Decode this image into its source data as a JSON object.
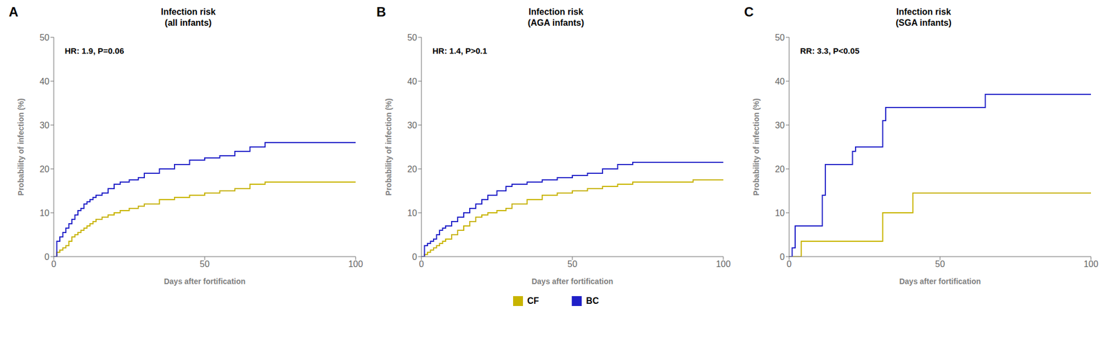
{
  "chart_data": [
    {
      "type": "step",
      "panel_label": "A",
      "title": "Infection risk\n(all infants)",
      "annotations": [
        "HR: 1.9, P=0.06"
      ],
      "x_label": "Days after fortification",
      "y_label": "Probability of infection (%)",
      "xlim": [
        0,
        100
      ],
      "xticks": [
        0,
        50,
        100
      ],
      "ylim": [
        0,
        50
      ],
      "yticks": [
        0,
        10,
        20,
        30,
        40,
        50
      ],
      "grid": false,
      "legend": "bottom",
      "series": [
        {
          "name": "CF",
          "color": "#c8b400",
          "x": [
            0,
            1,
            2,
            3,
            4,
            5,
            6,
            7,
            8,
            9,
            10,
            11,
            12,
            13,
            14,
            16,
            18,
            20,
            22,
            25,
            28,
            30,
            35,
            40,
            45,
            50,
            55,
            60,
            65,
            70,
            100
          ],
          "values": [
            0,
            1.0,
            1.5,
            2.0,
            2.5,
            3.5,
            4.5,
            5.0,
            5.5,
            6.0,
            6.5,
            7.0,
            7.5,
            8.0,
            8.5,
            9.0,
            9.5,
            10.0,
            10.5,
            11.0,
            11.5,
            12.0,
            13.0,
            13.5,
            14.0,
            14.5,
            15.0,
            15.5,
            16.5,
            17.0,
            17.0
          ]
        },
        {
          "name": "BC",
          "color": "#2020c8",
          "x": [
            0,
            1,
            2,
            3,
            4,
            5,
            6,
            7,
            8,
            9,
            10,
            11,
            12,
            13,
            14,
            16,
            18,
            20,
            22,
            25,
            28,
            30,
            35,
            40,
            45,
            50,
            55,
            60,
            65,
            70,
            100
          ],
          "values": [
            0,
            3.5,
            4.5,
            5.5,
            6.5,
            7.5,
            8.5,
            9.5,
            10.5,
            11.0,
            12.0,
            12.5,
            13.0,
            13.5,
            14.0,
            14.5,
            15.5,
            16.5,
            17.0,
            17.5,
            18.0,
            19.0,
            20.0,
            21.0,
            22.0,
            22.5,
            23.0,
            24.0,
            25.0,
            26.0,
            26.0
          ]
        }
      ]
    },
    {
      "type": "step",
      "panel_label": "B",
      "title": "Infection risk\n(AGA infants)",
      "annotations": [
        "HR: 1.4, P>0.1"
      ],
      "x_label": "Days after fortification",
      "y_label": "Probability of infection (%)",
      "xlim": [
        0,
        100
      ],
      "xticks": [
        0,
        50,
        100
      ],
      "ylim": [
        0,
        50
      ],
      "yticks": [
        0,
        10,
        20,
        30,
        40,
        50
      ],
      "grid": false,
      "legend": "bottom",
      "series": [
        {
          "name": "CF",
          "color": "#c8b400",
          "x": [
            0,
            1,
            2,
            3,
            4,
            5,
            6,
            7,
            8,
            10,
            12,
            14,
            16,
            18,
            20,
            22,
            25,
            28,
            30,
            35,
            40,
            45,
            50,
            55,
            60,
            65,
            70,
            90,
            100
          ],
          "values": [
            0,
            0.5,
            1.0,
            1.5,
            2.0,
            2.5,
            3.0,
            3.5,
            4.0,
            5.0,
            6.0,
            7.0,
            8.0,
            9.0,
            9.5,
            10.0,
            10.5,
            11.0,
            12.0,
            13.0,
            14.0,
            14.5,
            15.0,
            15.5,
            16.0,
            16.5,
            17.0,
            17.5,
            17.5
          ]
        },
        {
          "name": "BC",
          "color": "#2020c8",
          "x": [
            0,
            1,
            2,
            3,
            4,
            5,
            6,
            7,
            8,
            10,
            12,
            14,
            16,
            18,
            20,
            22,
            25,
            28,
            30,
            35,
            40,
            45,
            50,
            55,
            60,
            65,
            70,
            90,
            100
          ],
          "values": [
            0,
            2.5,
            3.0,
            3.5,
            4.0,
            5.0,
            6.0,
            6.5,
            7.0,
            8.0,
            9.0,
            10.0,
            11.0,
            12.0,
            13.0,
            14.0,
            15.0,
            16.0,
            16.5,
            17.0,
            17.5,
            18.0,
            18.5,
            19.0,
            20.0,
            21.0,
            21.5,
            21.5,
            21.5
          ]
        }
      ]
    },
    {
      "type": "step",
      "panel_label": "C",
      "title": "Infection risk\n(SGA infants)",
      "annotations": [
        "RR: 3.3, P<0.05"
      ],
      "x_label": "Days after fortification",
      "y_label": "Probability of infection (%)",
      "xlim": [
        0,
        100
      ],
      "xticks": [
        0,
        50,
        100
      ],
      "ylim": [
        0,
        50
      ],
      "yticks": [
        0,
        10,
        20,
        30,
        40,
        50
      ],
      "grid": false,
      "legend": "bottom",
      "series": [
        {
          "name": "CF",
          "color": "#c8b400",
          "x": [
            0,
            3,
            4,
            20,
            21,
            30,
            31,
            40,
            41,
            100
          ],
          "values": [
            0,
            0,
            3.5,
            3.5,
            3.5,
            3.5,
            10.0,
            10.0,
            14.5,
            14.5
          ]
        },
        {
          "name": "BC",
          "color": "#2020c8",
          "x": [
            0,
            1,
            2,
            10,
            11,
            12,
            20,
            21,
            22,
            30,
            31,
            32,
            40,
            50,
            60,
            65,
            100
          ],
          "values": [
            0,
            2.0,
            7.0,
            7.0,
            14.0,
            21.0,
            21.0,
            24.0,
            25.0,
            25.0,
            31.0,
            34.0,
            34.0,
            34.0,
            34.0,
            37.0,
            37.0
          ]
        }
      ]
    }
  ]
}
